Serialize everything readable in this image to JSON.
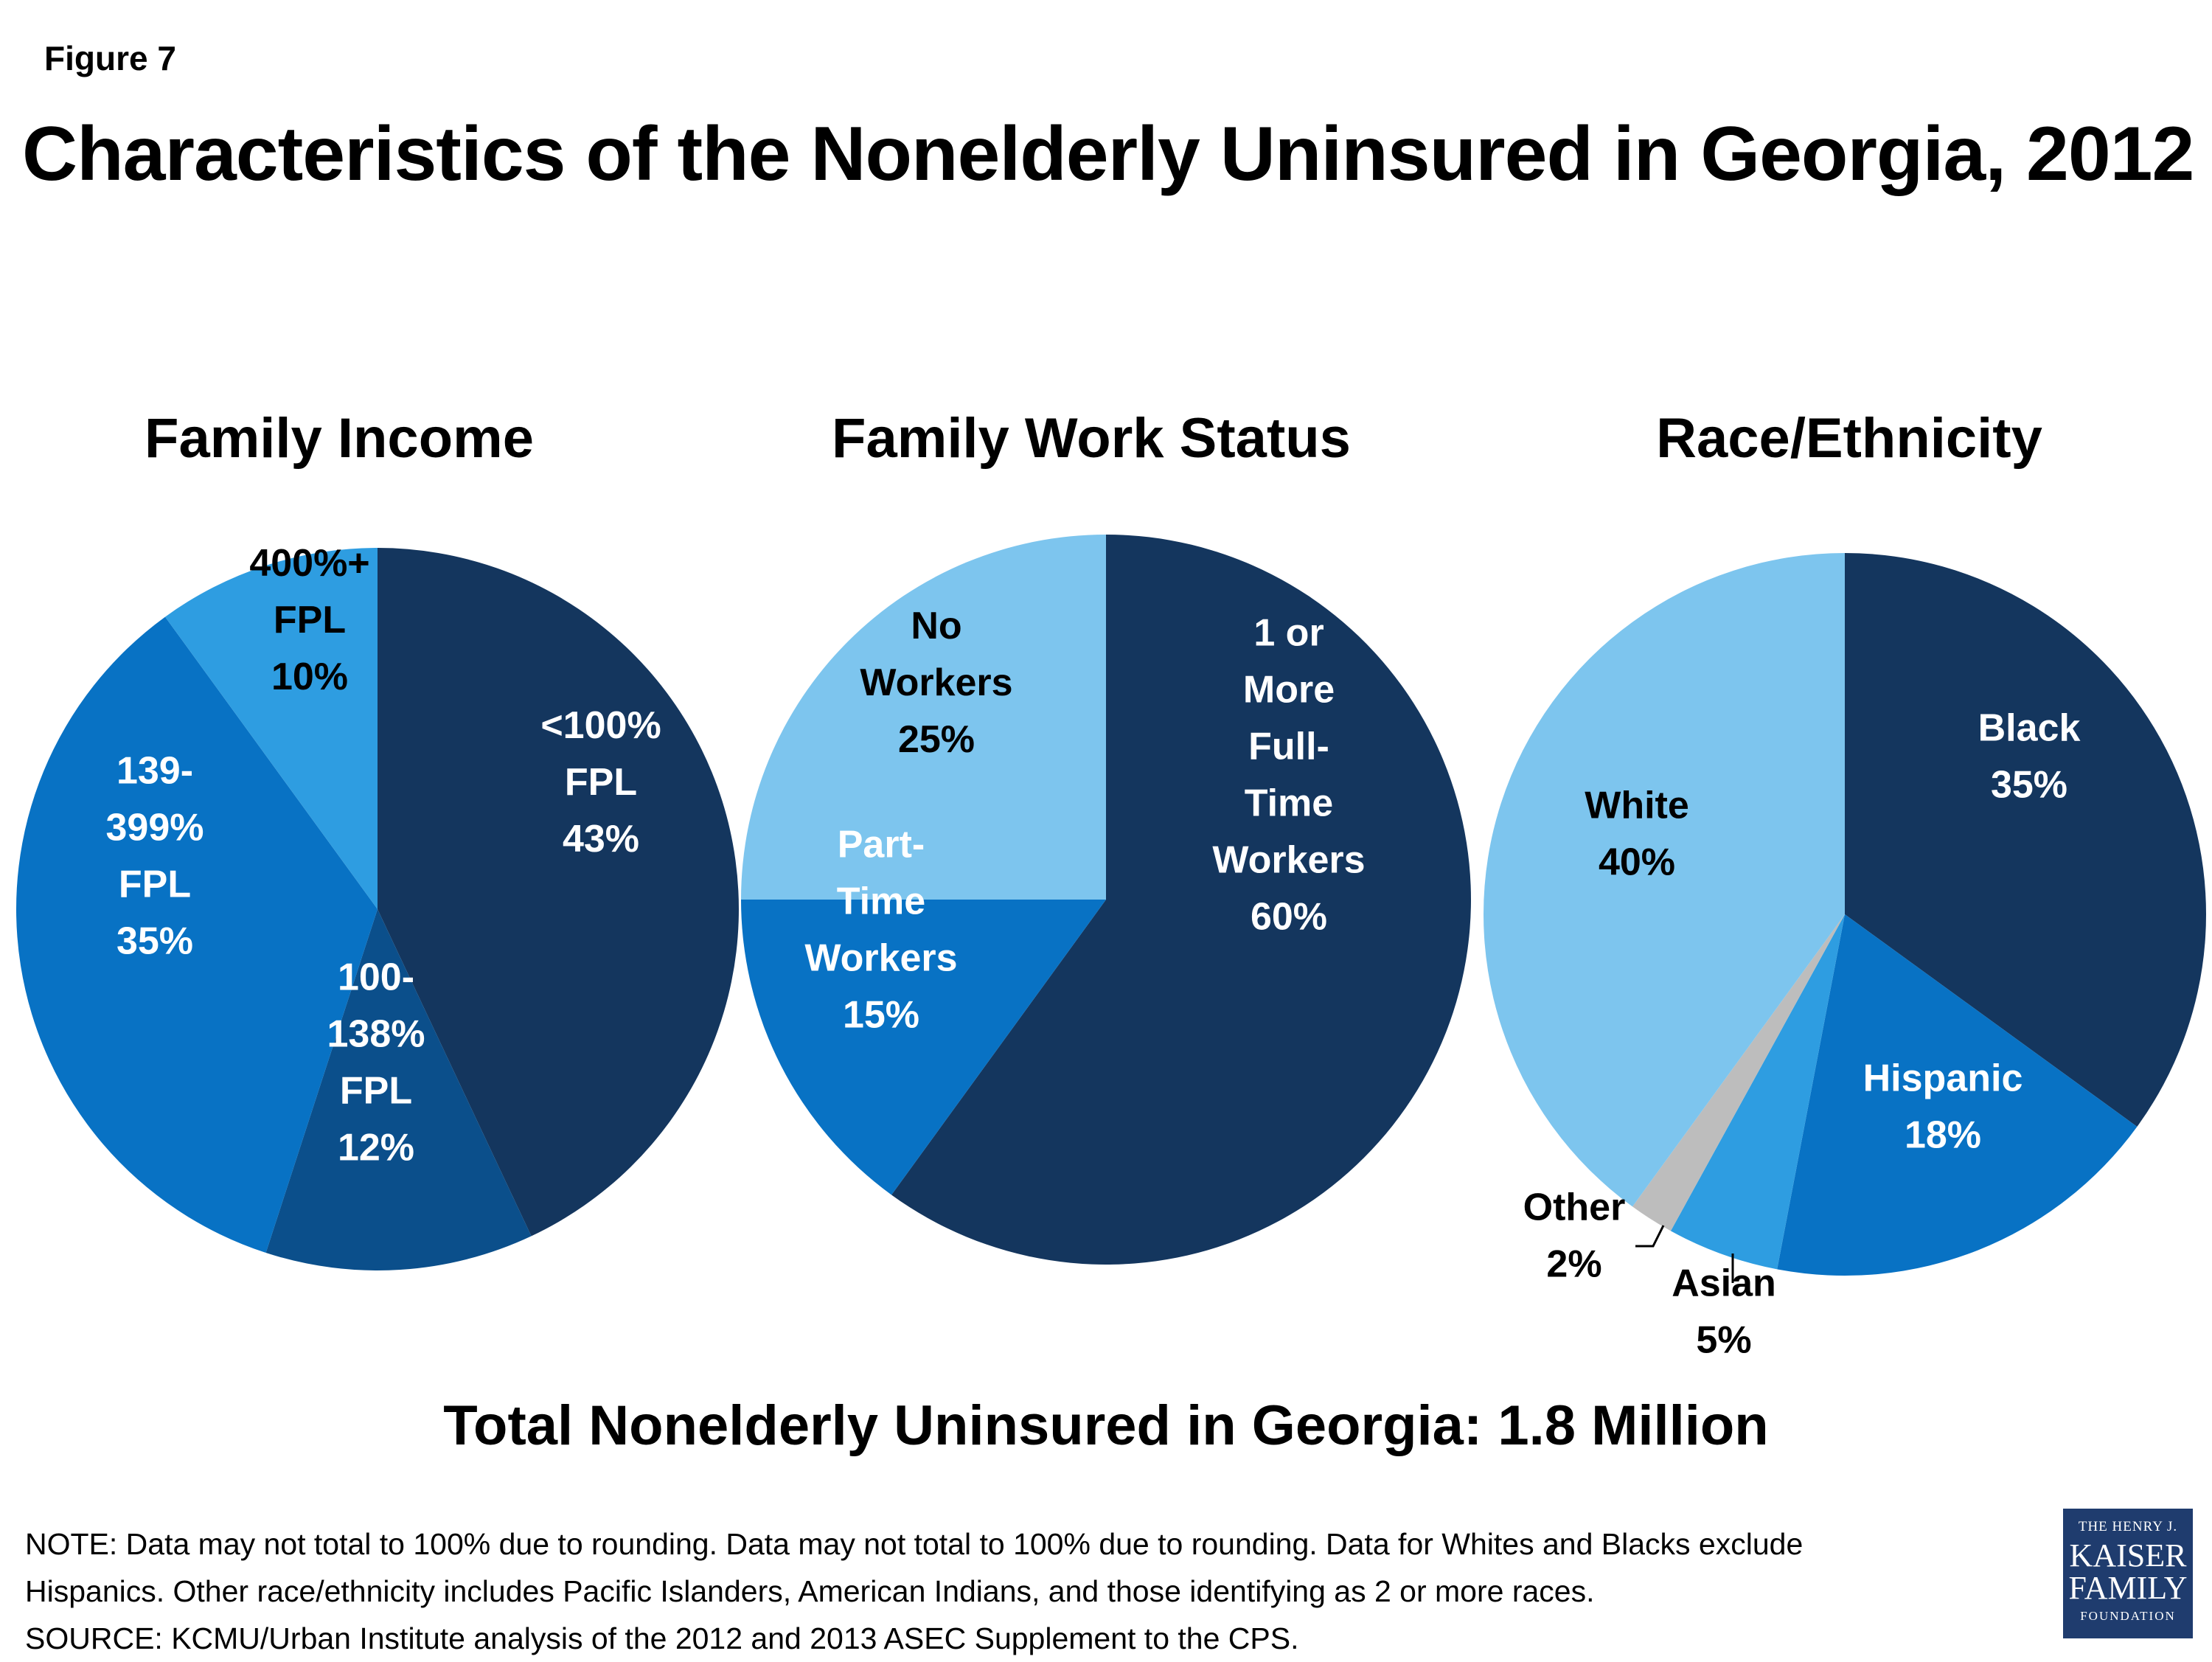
{
  "figure_label": "Figure 7",
  "title": "Characteristics of the Nonelderly Uninsured in Georgia, 2012",
  "total": "Total Nonelderly Uninsured in Georgia: 1.8 Million",
  "notes": [
    "NOTE: Data may not total to 100% due to rounding. Data may not total to 100% due to rounding. Data for Whites and Blacks exclude",
    "Hispanics. Other race/ethnicity includes Pacific Islanders, American Indians, and those identifying as 2 or more races.",
    "SOURCE: KCMU/Urban Institute analysis of the 2012 and 2013 ASEC Supplement to the CPS."
  ],
  "logo": {
    "line1": "THE HENRY J.",
    "line2": "KAISER",
    "line3": "FAMILY",
    "line4": "FOUNDATION"
  },
  "colors": {
    "darkest": "#14365e",
    "dark": "#0b4f8b",
    "medium": "#0872c4",
    "light": "#2e9de1",
    "lightest": "#7dc5ee",
    "gray": "#bdbdbd"
  },
  "chart_data": [
    {
      "type": "pie",
      "title": "Family Income",
      "slices": [
        {
          "label": "<100% FPL",
          "value": 43,
          "display": [
            "<100%",
            "FPL",
            "43%"
          ],
          "color": "#14365e"
        },
        {
          "label": "100-138% FPL",
          "value": 12,
          "display": [
            "100-",
            "138%",
            "FPL",
            "12%"
          ],
          "color": "#0b4f8b"
        },
        {
          "label": "139-399% FPL",
          "value": 35,
          "display": [
            "139-",
            "399%",
            "FPL",
            "35%"
          ],
          "color": "#0872c4"
        },
        {
          "label": "400%+ FPL",
          "value": 10,
          "display": [
            "400%+",
            "FPL",
            "10%"
          ],
          "color": "#2e9de1"
        }
      ]
    },
    {
      "type": "pie",
      "title": "Family Work Status",
      "slices": [
        {
          "label": "1 or More Full-Time Workers",
          "value": 60,
          "display": [
            "1 or",
            "More",
            "Full-",
            "Time",
            "Workers",
            "60%"
          ],
          "color": "#14365e"
        },
        {
          "label": "Part-Time Workers",
          "value": 15,
          "display": [
            "Part-",
            "Time",
            "Workers",
            "15%"
          ],
          "color": "#0872c4"
        },
        {
          "label": "No Workers",
          "value": 25,
          "display": [
            "No",
            "Workers",
            "25%"
          ],
          "color": "#7dc5ee"
        }
      ]
    },
    {
      "type": "pie",
      "title": "Race/Ethnicity",
      "slices": [
        {
          "label": "Black",
          "value": 35,
          "display": [
            "Black",
            "35%"
          ],
          "color": "#14365e"
        },
        {
          "label": "Hispanic",
          "value": 18,
          "display": [
            "Hispanic",
            "18%"
          ],
          "color": "#0872c4"
        },
        {
          "label": "Asian",
          "value": 5,
          "display": [
            "Asian",
            "5%"
          ],
          "color": "#2e9de1"
        },
        {
          "label": "Other",
          "value": 2,
          "display": [
            "Other",
            "2%"
          ],
          "color": "#bdbdbd"
        },
        {
          "label": "White",
          "value": 40,
          "display": [
            "White",
            "40%"
          ],
          "color": "#7dc5ee"
        }
      ]
    }
  ]
}
